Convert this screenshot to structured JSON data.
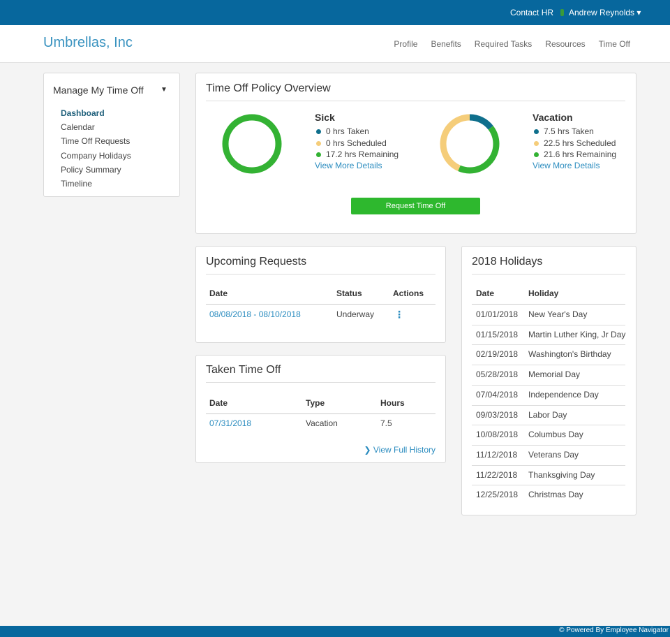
{
  "topbar": {
    "contact": "Contact HR",
    "user": "Andrew Reynolds"
  },
  "header": {
    "brand": "Umbrellas, Inc",
    "nav": [
      "Profile",
      "Benefits",
      "Required Tasks",
      "Resources",
      "Time Off"
    ]
  },
  "sidebar": {
    "title": "Manage My Time Off",
    "links": [
      "Dashboard",
      "Calendar",
      "Time Off Requests",
      "Company Holidays",
      "Policy Summary",
      "Timeline"
    ]
  },
  "overview": {
    "title": "Time Off Policy Overview",
    "policies": [
      {
        "name": "Sick",
        "items": [
          {
            "hours": 0,
            "label": "hrs Taken",
            "color": "#0f6f8c"
          },
          {
            "hours": 0,
            "label": "hrs Scheduled",
            "color": "#f5cd7a"
          },
          {
            "hours": 17.2,
            "label": "hrs Remaining",
            "color": "#33b233"
          }
        ],
        "link": "View More Details"
      },
      {
        "name": "Vacation",
        "items": [
          {
            "hours": 7.5,
            "label": "hrs Taken",
            "color": "#0f6f8c"
          },
          {
            "hours": 22.5,
            "label": "hrs Scheduled",
            "color": "#f5cd7a"
          },
          {
            "hours": 21.6,
            "label": "hrs Remaining",
            "color": "#33b233"
          }
        ],
        "link": "View More Details"
      }
    ],
    "button": "Request Time Off"
  },
  "upcoming": {
    "title": "Upcoming Requests",
    "columns": [
      "Date",
      "Status",
      "Actions"
    ],
    "rows": [
      [
        "08/08/2018 - 08/10/2018",
        "Underway"
      ]
    ]
  },
  "taken": {
    "title": "Taken Time Off",
    "columns": [
      "Date",
      "Type",
      "Hours"
    ],
    "rows": [
      [
        "07/31/2018",
        "Vacation",
        7.5
      ]
    ],
    "link": "View Full History"
  },
  "holidays": {
    "title": "2018 Holidays",
    "columns": [
      "Date",
      "Holiday"
    ],
    "rows": [
      [
        "01/01/2018",
        "New Year's Day"
      ],
      [
        "01/15/2018",
        "Martin Luther King, Jr Day"
      ],
      [
        "02/19/2018",
        "Washington's Birthday"
      ],
      [
        "05/28/2018",
        "Memorial Day"
      ],
      [
        "07/04/2018",
        "Independence Day"
      ],
      [
        "09/03/2018",
        "Labor Day"
      ],
      [
        "10/08/2018",
        "Columbus Day"
      ],
      [
        "11/12/2018",
        "Veterans Day"
      ],
      [
        "11/22/2018",
        "Thanksgiving Day"
      ],
      [
        "12/25/2018",
        "Christmas Day"
      ]
    ]
  },
  "footer": "© Powered By Employee Navigator"
}
